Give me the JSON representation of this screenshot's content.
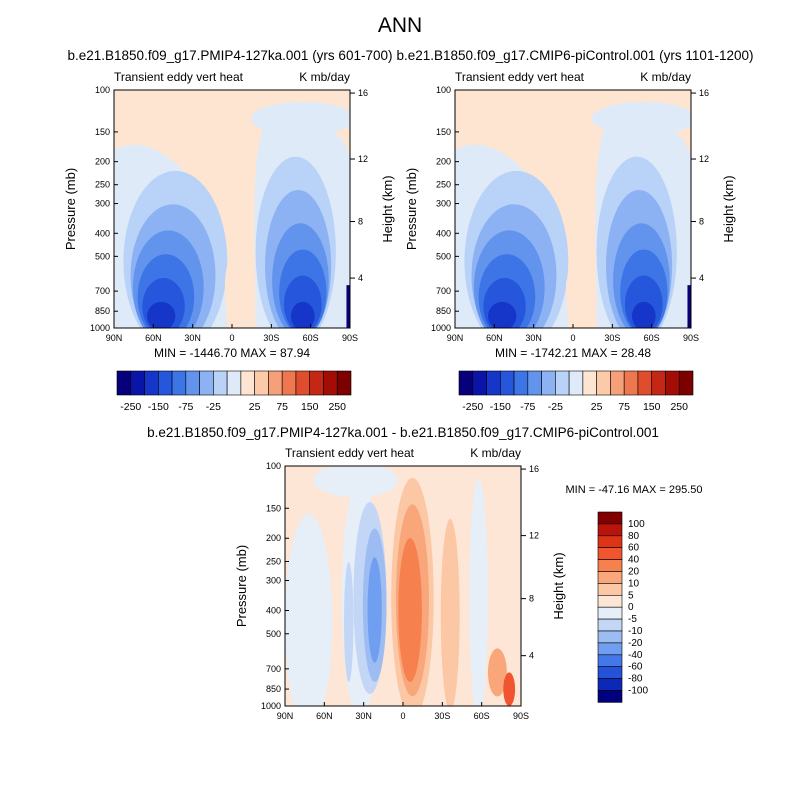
{
  "figure_title": "ANN",
  "chart_data": [
    {
      "type": "heatmap",
      "title": "b.e21.B1850.f09_g17.PMIP4-127ka.001 (yrs 601-700)",
      "subtitle_left": "Transient eddy vert heat",
      "subtitle_right": "K mb/day",
      "ylabel": "Pressure (mb)",
      "ylabel_right": "Height (km)",
      "x_ticks": [
        "90N",
        "60N",
        "30N",
        "0",
        "30S",
        "60S",
        "90S"
      ],
      "y_ticks": [
        "100",
        "150",
        "200",
        "250",
        "300",
        "400",
        "500",
        "700",
        "850",
        "1000"
      ],
      "y_right_ticks": [
        "16",
        "12",
        "8",
        "4"
      ],
      "stats": "MIN = -1446.70   MAX = 87.94"
    },
    {
      "type": "heatmap",
      "title": "b.e21.B1850.f09_g17.CMIP6-piControl.001 (yrs 1101-1200)",
      "subtitle_left": "Transient eddy vert heat",
      "subtitle_right": "K mb/day",
      "ylabel": "Pressure (mb)",
      "ylabel_right": "Height (km)",
      "x_ticks": [
        "90N",
        "60N",
        "30N",
        "0",
        "30S",
        "60S",
        "90S"
      ],
      "y_ticks": [
        "100",
        "150",
        "200",
        "250",
        "300",
        "400",
        "500",
        "700",
        "850",
        "1000"
      ],
      "y_right_ticks": [
        "16",
        "12",
        "8",
        "4"
      ],
      "stats": "MIN = -1742.21   MAX = 28.48"
    },
    {
      "type": "heatmap",
      "title": "b.e21.B1850.f09_g17.PMIP4-127ka.001 - b.e21.B1850.f09_g17.CMIP6-piControl.001",
      "subtitle_left": "Transient eddy vert heat",
      "subtitle_right": "K mb/day",
      "ylabel": "Pressure (mb)",
      "ylabel_right": "Height (km)",
      "x_ticks": [
        "90N",
        "60N",
        "30N",
        "0",
        "30S",
        "60S",
        "90S"
      ],
      "y_ticks": [
        "100",
        "150",
        "200",
        "250",
        "300",
        "400",
        "500",
        "700",
        "850",
        "1000"
      ],
      "y_right_ticks": [
        "16",
        "12",
        "8",
        "4"
      ],
      "stats": "MIN = -47.16   MAX = 295.50"
    }
  ],
  "colorbar_main": {
    "labels": [
      "-250",
      "-150",
      "-75",
      "-25",
      "25",
      "75",
      "150",
      "250"
    ],
    "colors": [
      "#08007a",
      "#0a14a8",
      "#1536c8",
      "#2556dc",
      "#3d74e6",
      "#6294ee",
      "#8cb2f4",
      "#b8d2f8",
      "#dfeaf9",
      "#fde5d2",
      "#fbcaa8",
      "#f6a07a",
      "#ef7750",
      "#e04d2c",
      "#c42714",
      "#a30d06",
      "#7d0000"
    ]
  },
  "colorbar_diff": {
    "labels": [
      "100",
      "80",
      "60",
      "40",
      "20",
      "10",
      "5",
      "0",
      "-5",
      "-10",
      "-20",
      "-40",
      "-60",
      "-80",
      "-100"
    ],
    "colors": [
      "#820000",
      "#b8140b",
      "#dc3414",
      "#f05530",
      "#f7804f",
      "#f9a67b",
      "#fcc7a4",
      "#fde6d6",
      "#e6eef8",
      "#c4d6f6",
      "#9cbcf2",
      "#709ef0",
      "#4478e8",
      "#2452d8",
      "#0c28b8",
      "#000080"
    ]
  }
}
